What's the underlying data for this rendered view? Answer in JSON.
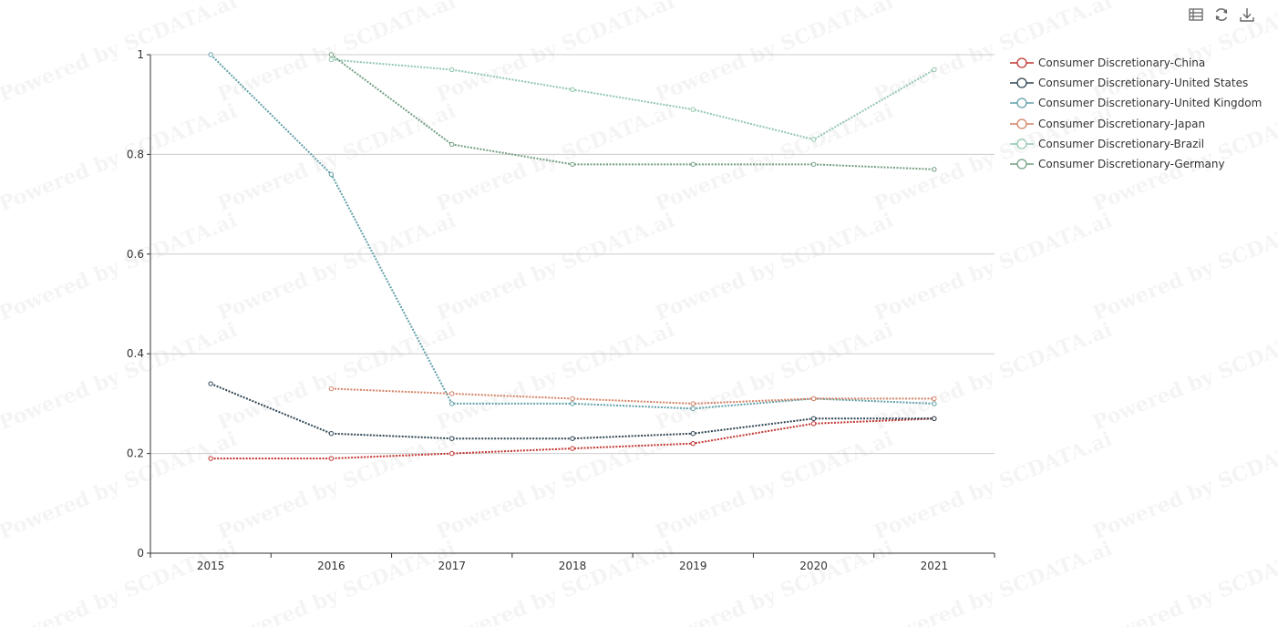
{
  "toolbox": {
    "icons": [
      "data-view-icon",
      "refresh-icon",
      "download-icon"
    ]
  },
  "watermark": {
    "text": "Powered by SCDATA.ai"
  },
  "chart_data": {
    "type": "line",
    "x": [
      "2015",
      "2016",
      "2017",
      "2018",
      "2019",
      "2020",
      "2021"
    ],
    "ylim": [
      0,
      1
    ],
    "yticks": [
      "0",
      "0.2",
      "0.4",
      "0.6",
      "0.8",
      "1"
    ],
    "grid": true,
    "legend_position": "top-right",
    "series": [
      {
        "name": "Consumer Discretionary-China",
        "color": "#c23531",
        "values": [
          0.19,
          0.19,
          0.2,
          0.21,
          0.22,
          0.26,
          0.27
        ]
      },
      {
        "name": "Consumer Discretionary-United States",
        "color": "#2f4554",
        "values": [
          0.34,
          0.24,
          0.23,
          0.23,
          0.24,
          0.27,
          0.27
        ]
      },
      {
        "name": "Consumer Discretionary-United Kingdom",
        "color": "#61a0a8",
        "values": [
          1.0,
          0.76,
          0.3,
          0.3,
          0.29,
          0.31,
          0.3
        ]
      },
      {
        "name": "Consumer Discretionary-Japan",
        "color": "#d48265",
        "values": [
          null,
          0.33,
          0.32,
          0.31,
          0.3,
          0.31,
          0.31
        ]
      },
      {
        "name": "Consumer Discretionary-Brazil",
        "color": "#91c7ae",
        "values": [
          null,
          0.99,
          0.97,
          0.93,
          0.89,
          0.83,
          0.97
        ]
      },
      {
        "name": "Consumer Discretionary-Germany",
        "color": "#749f83",
        "values": [
          null,
          1.0,
          0.82,
          0.78,
          0.78,
          0.78,
          0.77
        ]
      }
    ]
  }
}
